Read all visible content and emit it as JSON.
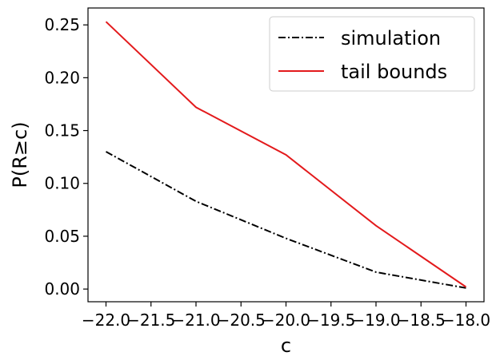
{
  "chart_data": {
    "type": "line",
    "xlabel": "c",
    "ylabel": "P(R≥c)",
    "x": [
      -22.0,
      -21.0,
      -20.0,
      -19.0,
      -18.0
    ],
    "xlim": [
      -22.2,
      -17.8
    ],
    "ylim": [
      -0.012,
      0.266
    ],
    "xticks": [
      -22.0,
      -21.5,
      -21.0,
      -20.5,
      -20.0,
      -19.5,
      -19.0,
      -18.5,
      -18.0
    ],
    "xtick_labels": [
      "−22.0",
      "−21.5",
      "−21.0",
      "−20.5",
      "−20.0",
      "−19.5",
      "−19.0",
      "−18.5",
      "−18.0"
    ],
    "yticks": [
      0.0,
      0.05,
      0.1,
      0.15,
      0.2,
      0.25
    ],
    "ytick_labels": [
      "0.00",
      "0.05",
      "0.10",
      "0.15",
      "0.20",
      "0.25"
    ],
    "grid": false,
    "legend_position": "top-right",
    "series": [
      {
        "name": "simulation",
        "values": [
          0.13,
          0.083,
          0.048,
          0.016,
          0.001
        ],
        "color": "#000000",
        "style": "dashdot"
      },
      {
        "name": "tail bounds",
        "values": [
          0.253,
          0.172,
          0.127,
          0.06,
          0.002
        ],
        "color": "#e31a1c",
        "style": "solid"
      }
    ]
  }
}
